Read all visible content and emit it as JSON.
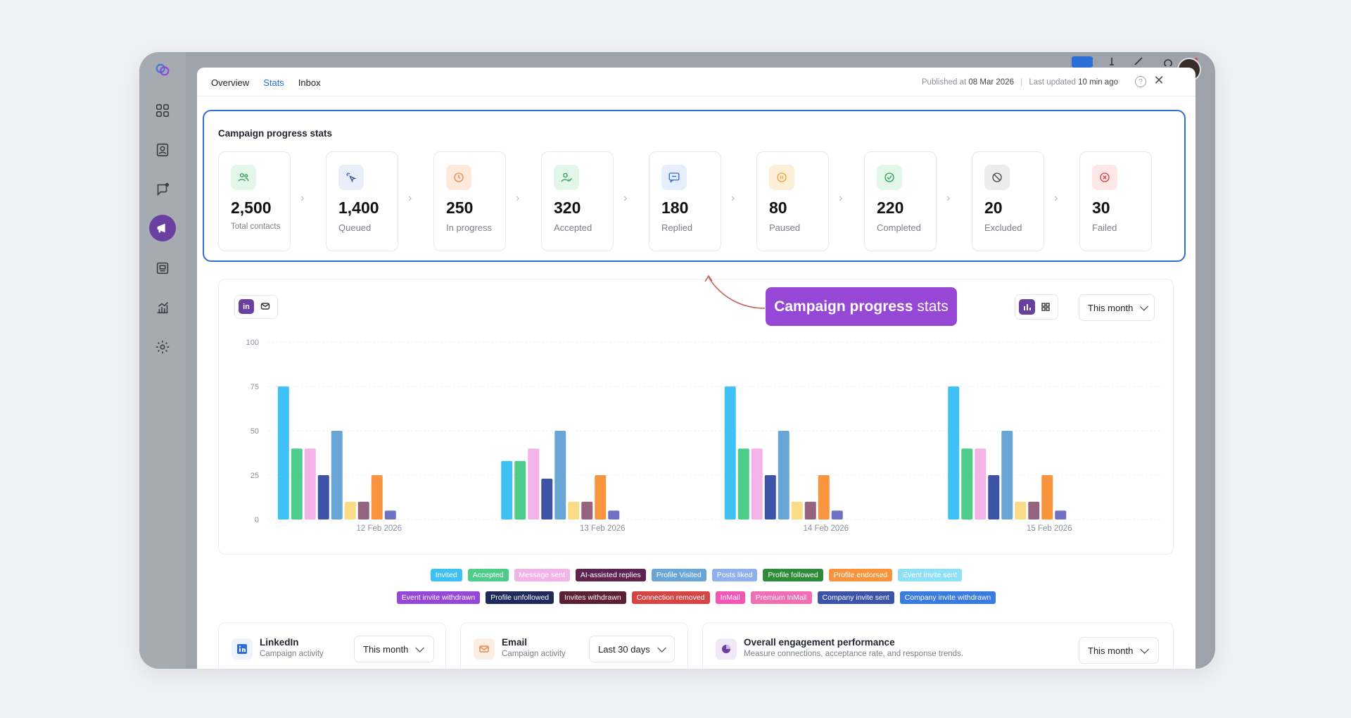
{
  "tabs": [
    {
      "label": "Overview"
    },
    {
      "label": "Stats"
    },
    {
      "label": "Inbox"
    }
  ],
  "meta": {
    "published_prefix": "Published at",
    "published_date": "08 Mar 2026",
    "updated_prefix": "Last updated",
    "updated_value": "10 min ago"
  },
  "stats": {
    "title": "Campaign progress stats",
    "cards": [
      {
        "value": "2,500",
        "label": "Total contacts"
      },
      {
        "value": "1,400",
        "label": "Queued"
      },
      {
        "value": "250",
        "label": "In progress"
      },
      {
        "value": "320",
        "label": "Accepted"
      },
      {
        "value": "180",
        "label": "Replied"
      },
      {
        "value": "80",
        "label": "Paused"
      },
      {
        "value": "220",
        "label": "Completed"
      },
      {
        "value": "20",
        "label": "Excluded"
      },
      {
        "value": "30",
        "label": "Failed"
      }
    ]
  },
  "callout": {
    "strong": "Campaign progress",
    "rest": "stats"
  },
  "chart_toggle": {
    "linkedin_label": "in"
  },
  "chart_filter": {
    "label": "This month"
  },
  "chart_data": {
    "type": "bar",
    "categories": [
      "12 Feb 2026",
      "13 Feb 2026",
      "14 Feb 2026",
      "15 Feb 2026"
    ],
    "ylim": [
      0,
      100
    ],
    "yticks": [
      0,
      25,
      50,
      75,
      100
    ],
    "series": [
      {
        "color": "#3fc1f5",
        "values": [
          75,
          33,
          75,
          75
        ]
      },
      {
        "color": "#4fcb8a",
        "values": [
          40,
          33,
          40,
          40
        ]
      },
      {
        "color": "#f2b3e8",
        "values": [
          40,
          40,
          40,
          40
        ]
      },
      {
        "color": "#3c53a6",
        "values": [
          25,
          23,
          25,
          25
        ]
      },
      {
        "color": "#69a6d6",
        "values": [
          50,
          50,
          50,
          50
        ]
      },
      {
        "color": "#fbdc86",
        "values": [
          10,
          10,
          10,
          10
        ]
      },
      {
        "color": "#94637e",
        "values": [
          10,
          10,
          10,
          10
        ]
      },
      {
        "color": "#f9943e",
        "values": [
          25,
          25,
          25,
          25
        ]
      },
      {
        "color": "#6f72c4",
        "values": [
          5,
          5,
          5,
          5
        ]
      }
    ]
  },
  "legend": {
    "row1": [
      {
        "label": "Invited",
        "color": "#3fc1f5"
      },
      {
        "label": "Accepted",
        "color": "#4fcb8a"
      },
      {
        "label": "Message sent",
        "color": "#f2b3e8"
      },
      {
        "label": "AI-assisted replies",
        "color": "#5e2350"
      },
      {
        "label": "Profile Visited",
        "color": "#69a6d6"
      },
      {
        "label": "Posts liked",
        "color": "#8fb0ea"
      },
      {
        "label": "Profile followed",
        "color": "#2e8b3a"
      },
      {
        "label": "Profile endorsed",
        "color": "#f9943e"
      },
      {
        "label": "Event invite sent",
        "color": "#8ee0f5"
      }
    ],
    "row2": [
      {
        "label": "Event invite withdrawn",
        "color": "#9747d6"
      },
      {
        "label": "Profile unfollowed",
        "color": "#1f2a5c"
      },
      {
        "label": "Invites withdrawn",
        "color": "#5e1f35"
      },
      {
        "label": "Connection removed",
        "color": "#d64545"
      },
      {
        "label": "InMail",
        "color": "#f257b8"
      },
      {
        "label": "Premium InMail",
        "color": "#f06fb4"
      },
      {
        "label": "Company invite sent",
        "color": "#3c53a6"
      },
      {
        "label": "Company invite withdrawn",
        "color": "#3a7be0"
      }
    ]
  },
  "bottom": {
    "linkedin": {
      "title": "LinkedIn",
      "subtitle": "Campaign activity",
      "filter": "This month"
    },
    "email": {
      "title": "Email",
      "subtitle": "Campaign activity",
      "filter": "Last 30 days"
    },
    "overall": {
      "title": "Overall engagement performance",
      "subtitle": "Measure connections, acceptance rate, and response trends.",
      "filter": "This month"
    }
  }
}
